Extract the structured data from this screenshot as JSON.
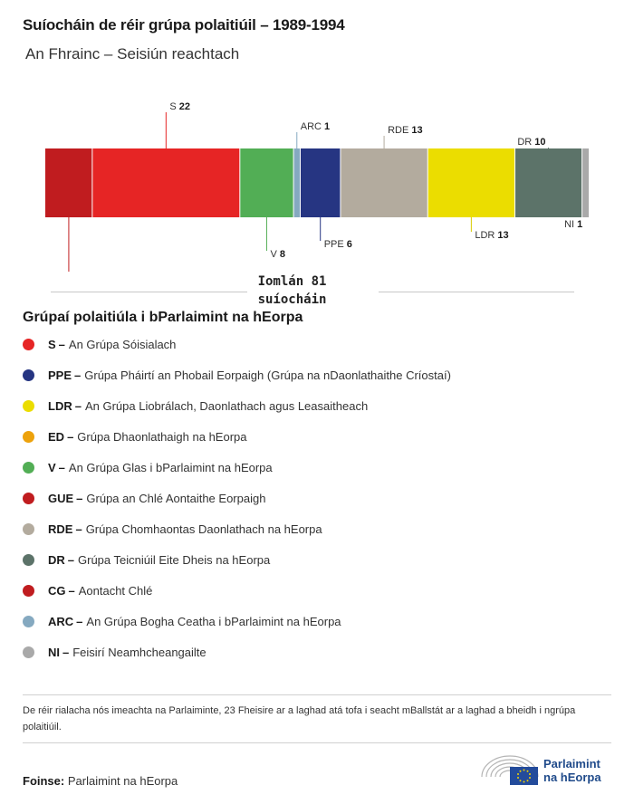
{
  "header": {
    "title": "Suíocháin de réir grúpa polaitiúil – 1989-1994",
    "subtitle": "An Fhrainc – Seisiún reachtach"
  },
  "chart_data": {
    "type": "bar",
    "orientation": "stacked-horizontal",
    "total": 81,
    "segments": [
      {
        "group": "CG",
        "seats": 7,
        "color": "#c01c1f"
      },
      {
        "group": "S",
        "seats": 22,
        "color": "#e62525"
      },
      {
        "group": "V",
        "seats": 8,
        "color": "#52ae55"
      },
      {
        "group": "ARC",
        "seats": 1,
        "color": "#85a9c0"
      },
      {
        "group": "PPE",
        "seats": 6,
        "color": "#263582"
      },
      {
        "group": "RDE",
        "seats": 13,
        "color": "#b3ab9e"
      },
      {
        "group": "LDR",
        "seats": 13,
        "color": "#ebdd00"
      },
      {
        "group": "DR",
        "seats": 10,
        "color": "#5c7369"
      },
      {
        "group": "NI",
        "seats": 1,
        "color": "#a9a9a9"
      }
    ]
  },
  "total_label": {
    "line1": "Iomlán 81",
    "line2": "suíocháin"
  },
  "legend": {
    "title": "Grúpaí polaitiúla i bParlaimint na hEorpa",
    "items": [
      {
        "abbr": "S",
        "name": "An Grúpa Sóisialach",
        "color": "#e62525"
      },
      {
        "abbr": "PPE",
        "name": "Grúpa Pháirtí an Phobail Eorpaigh (Grúpa na nDaonlathaithe Críostaí)",
        "color": "#263582"
      },
      {
        "abbr": "LDR",
        "name": "An Grúpa Liobrálach, Daonlathach agus Leasaitheach",
        "color": "#ebdd00"
      },
      {
        "abbr": "ED",
        "name": "Grúpa Dhaonlathaigh na hEorpa",
        "color": "#eda20c"
      },
      {
        "abbr": "V",
        "name": "An Grúpa Glas i bParlaimint na hEorpa",
        "color": "#52ae55"
      },
      {
        "abbr": "GUE",
        "name": "Grúpa an Chlé Aontaithe Eorpaigh",
        "color": "#c01c1f"
      },
      {
        "abbr": "RDE",
        "name": "Grúpa Chomhaontas Daonlathach na hEorpa",
        "color": "#b3ab9e"
      },
      {
        "abbr": "DR",
        "name": "Grúpa Teicniúil Eite Dheis na hEorpa",
        "color": "#5c7369"
      },
      {
        "abbr": "CG",
        "name": "Aontacht Chlé",
        "color": "#c01c1f"
      },
      {
        "abbr": "ARC",
        "name": "An Grúpa Bogha Ceatha i bParlaimint na hEorpa",
        "color": "#85a9c0"
      },
      {
        "abbr": "NI",
        "name": "Feisirí Neamhcheangailte",
        "color": "#a9a9a9"
      }
    ]
  },
  "note": "De réir rialacha nós imeachta na Parlaiminte, 23 Fheisire ar a laghad atá tofa i seacht mBallstát ar a laghad a bheidh i ngrúpa polaitiúil.",
  "footer": {
    "source_label": "Foinse:",
    "source_text": "Parlaimint na hEorpa",
    "logo_line1": "Parlaimint",
    "logo_line2": "na hEorpa"
  }
}
